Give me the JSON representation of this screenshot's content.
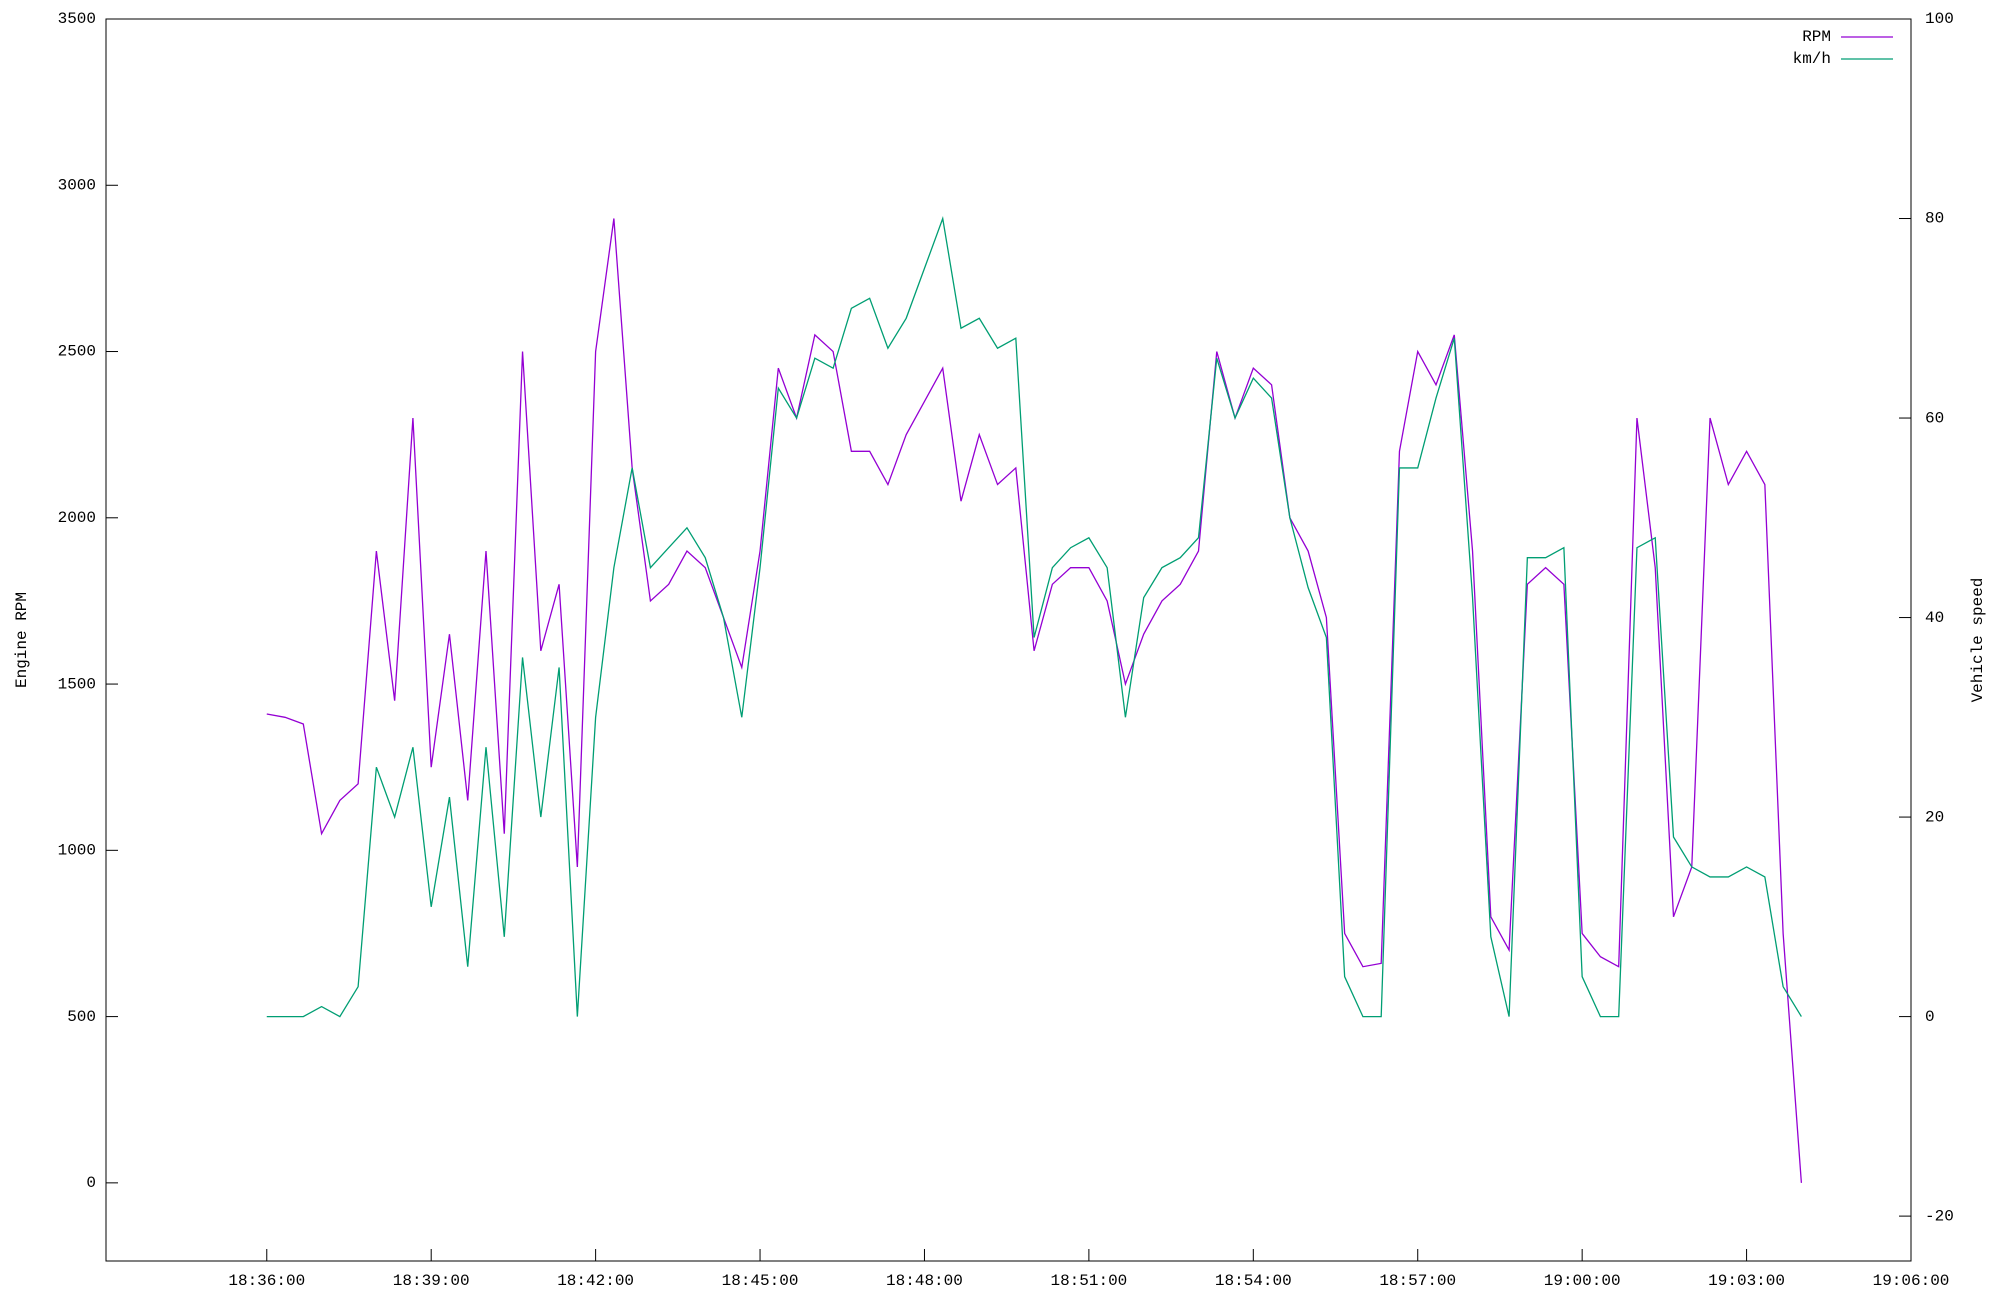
{
  "chart_data": {
    "type": "line",
    "ylabel": "Engine RPM",
    "y2label": "Vehicle speed",
    "x": [
      "18:36:00",
      "18:36:20",
      "18:36:40",
      "18:37:00",
      "18:37:20",
      "18:37:40",
      "18:38:00",
      "18:38:20",
      "18:38:40",
      "18:39:00",
      "18:39:20",
      "18:39:40",
      "18:40:00",
      "18:40:20",
      "18:40:40",
      "18:41:00",
      "18:41:20",
      "18:41:40",
      "18:42:00",
      "18:42:20",
      "18:42:40",
      "18:43:00",
      "18:43:20",
      "18:43:40",
      "18:44:00",
      "18:44:20",
      "18:44:40",
      "18:45:00",
      "18:45:20",
      "18:45:40",
      "18:46:00",
      "18:46:20",
      "18:46:40",
      "18:47:00",
      "18:47:20",
      "18:47:40",
      "18:48:00",
      "18:48:20",
      "18:48:40",
      "18:49:00",
      "18:49:20",
      "18:49:40",
      "18:50:00",
      "18:50:20",
      "18:50:40",
      "18:51:00",
      "18:51:20",
      "18:51:40",
      "18:52:00",
      "18:52:20",
      "18:52:40",
      "18:53:00",
      "18:53:20",
      "18:53:40",
      "18:54:00",
      "18:54:20",
      "18:54:40",
      "18:55:00",
      "18:55:20",
      "18:55:40",
      "18:56:00",
      "18:56:20",
      "18:56:40",
      "18:57:00",
      "18:57:20",
      "18:57:40",
      "18:58:00",
      "18:58:20",
      "18:58:40",
      "18:59:00",
      "18:59:20",
      "18:59:40",
      "19:00:00",
      "19:00:20",
      "19:00:40",
      "19:01:00",
      "19:01:20",
      "19:01:40",
      "19:02:00",
      "19:02:20",
      "19:02:40",
      "19:03:00",
      "19:03:20",
      "19:03:40",
      "19:04:00"
    ],
    "series": [
      {
        "name": "RPM",
        "color": "#9400d3",
        "axis": "y",
        "values": [
          1410,
          1400,
          1380,
          1050,
          1150,
          1200,
          1900,
          1450,
          2300,
          1250,
          1650,
          1150,
          1900,
          1050,
          2500,
          1600,
          1800,
          950,
          2500,
          2900,
          2150,
          1750,
          1800,
          1900,
          1850,
          1700,
          1550,
          1900,
          2450,
          2300,
          2550,
          2500,
          2200,
          2200,
          2100,
          2250,
          2350,
          2450,
          2050,
          2250,
          2100,
          2150,
          1600,
          1800,
          1850,
          1850,
          1750,
          1500,
          1650,
          1750,
          1800,
          1900,
          2500,
          2300,
          2450,
          2400,
          2000,
          1900,
          1700,
          750,
          650,
          660,
          2200,
          2500,
          2400,
          2550,
          1900,
          800,
          700,
          1800,
          1850,
          1800,
          750,
          680,
          650,
          2300,
          1850,
          800,
          950,
          2300,
          2100,
          2200,
          2100,
          750,
          0
        ]
      },
      {
        "name": "km/h",
        "color": "#009e73",
        "axis": "y2",
        "values": [
          0,
          0,
          0,
          1,
          0,
          3,
          25,
          20,
          27,
          11,
          22,
          5,
          27,
          8,
          36,
          20,
          35,
          0,
          30,
          45,
          55,
          45,
          47,
          49,
          46,
          40,
          30,
          45,
          63,
          60,
          66,
          65,
          71,
          72,
          67,
          70,
          75,
          80,
          69,
          70,
          67,
          68,
          38,
          45,
          47,
          48,
          45,
          30,
          42,
          45,
          46,
          48,
          66,
          60,
          64,
          62,
          50,
          43,
          38,
          4,
          0,
          0,
          55,
          55,
          62,
          68,
          42,
          8,
          0,
          46,
          46,
          47,
          4,
          0,
          0,
          47,
          48,
          18,
          15,
          14,
          14,
          15,
          14,
          3,
          0
        ]
      }
    ],
    "xlim": [
      "18:33:04",
      "19:06:00"
    ],
    "xticks": [
      "18:36:00",
      "18:39:00",
      "18:42:00",
      "18:45:00",
      "18:48:00",
      "18:51:00",
      "18:54:00",
      "18:57:00",
      "19:00:00",
      "19:03:00",
      "19:06:00"
    ],
    "ylim": [
      -235,
      3500
    ],
    "yticks": [
      0,
      500,
      1000,
      1500,
      2000,
      2500,
      3000,
      3500
    ],
    "y2lim": [
      -24.5,
      100
    ],
    "y2ticks": [
      -20,
      0,
      20,
      40,
      60,
      80,
      100
    ],
    "grid": false,
    "legend": "top right"
  }
}
